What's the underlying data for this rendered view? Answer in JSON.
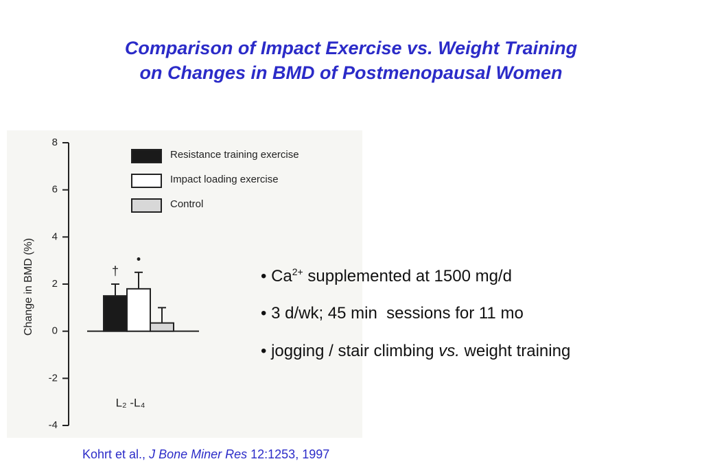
{
  "header": {
    "title_lines": [
      "Comparison of Impact Exercise vs. Weight Training",
      "on Changes in BMD of Postmenopausal Women"
    ]
  },
  "chart_data": {
    "type": "bar",
    "y_label": "Change in BMD (%)",
    "categories": [
      "L₂ -L₄"
    ],
    "series": [
      {
        "name": "Resistance training exercise",
        "color": "#1a1a1a",
        "values": [
          1.5
        ],
        "errors": [
          0.5
        ],
        "annotation": "†"
      },
      {
        "name": "Impact loading exercise",
        "color": "#ffffff",
        "values": [
          1.8
        ],
        "errors": [
          0.7
        ],
        "annotation": "•"
      },
      {
        "name": "Control",
        "color": "#d8d8d8",
        "values": [
          0.35
        ],
        "errors": [
          0.65
        ]
      }
    ],
    "ylim": [
      -4,
      8
    ],
    "yticks": [
      -4,
      -2,
      0,
      2,
      4,
      6,
      8
    ]
  },
  "bullets": [
    [
      "Ca",
      "2+",
      " supplemented at 1500 mg/d"
    ],
    [
      "3 d/wk; 45 min  sessions for 11 mo"
    ],
    [
      "jogging / stair climbing ",
      "vs.",
      " weight training"
    ]
  ],
  "citation": [
    "Kohrt et al., ",
    "J Bone Miner Res",
    " 12:1253, 1997"
  ]
}
